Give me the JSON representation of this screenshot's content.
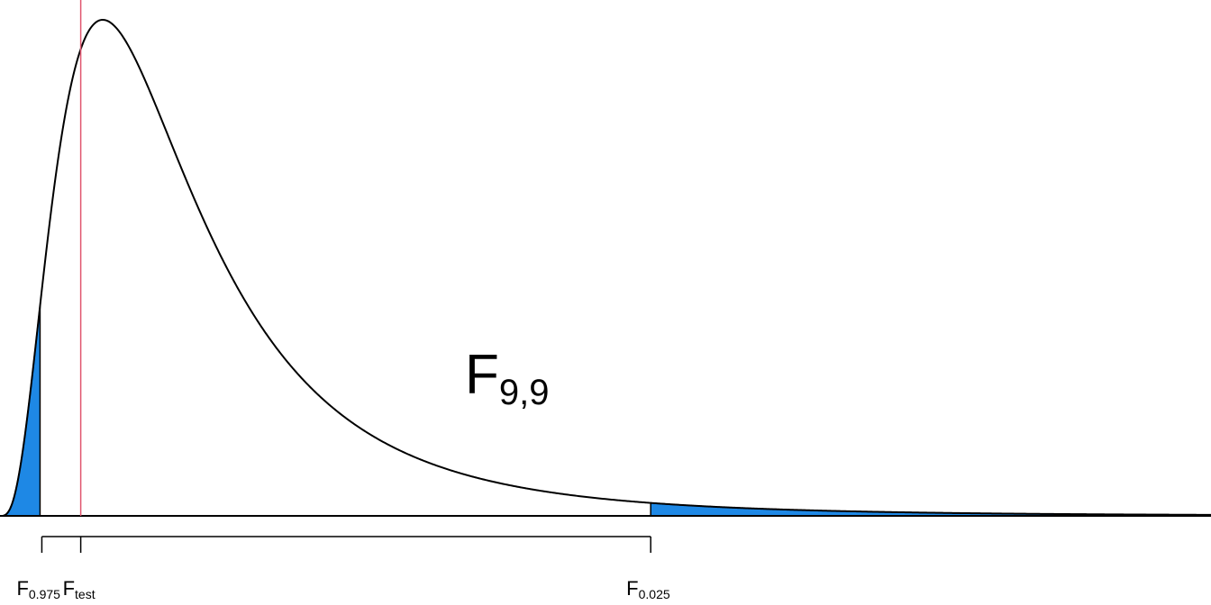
{
  "distribution": {
    "name": "F",
    "df1": 9,
    "df2": 9,
    "df_label": "9,9"
  },
  "markers": {
    "lower_critical": {
      "main": "F",
      "sub": "0.975",
      "value": 0.248
    },
    "test_statistic": {
      "main": "F",
      "sub": "test",
      "value": 0.5
    },
    "upper_critical": {
      "main": "F",
      "sub": "0.025",
      "value": 4.03
    }
  },
  "x_range": [
    0,
    7.5
  ],
  "colors": {
    "curve": "#000000",
    "tail_fill": "#1e88e5",
    "test_line": "#e0556f",
    "axis": "#000000"
  }
}
